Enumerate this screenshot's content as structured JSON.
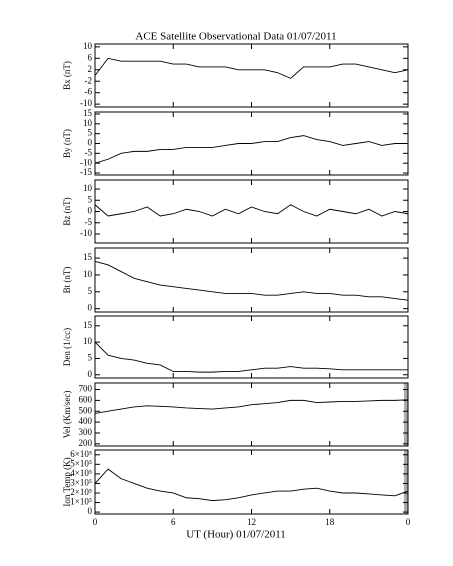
{
  "chart_data": [
    {
      "type": "line",
      "title": "ACE Satellite Observational Data   01/07/2011",
      "y_label": "Bx (nT)",
      "x": [
        0,
        1,
        2,
        3,
        4,
        5,
        6,
        7,
        8,
        9,
        10,
        11,
        12,
        13,
        14,
        15,
        16,
        17,
        18,
        19,
        20,
        21,
        22,
        23,
        24
      ],
      "values": [
        0,
        6,
        5,
        5,
        5,
        5,
        4,
        4,
        3,
        3,
        3,
        2,
        2,
        2,
        1,
        -1,
        3,
        3,
        3,
        4,
        4,
        3,
        2,
        1,
        2
      ],
      "xlim": [
        0,
        24
      ],
      "ylim": [
        -11,
        11
      ],
      "yticks": [
        -10,
        -6,
        -2,
        2,
        6,
        10
      ]
    },
    {
      "type": "line",
      "y_label": "By (nT)",
      "x": [
        0,
        1,
        2,
        3,
        4,
        5,
        6,
        7,
        8,
        9,
        10,
        11,
        12,
        13,
        14,
        15,
        16,
        17,
        18,
        19,
        20,
        21,
        22,
        23,
        24
      ],
      "values": [
        -10,
        -8,
        -5,
        -4,
        -4,
        -3,
        -3,
        -2,
        -2,
        -2,
        -1,
        0,
        0,
        1,
        1,
        3,
        4,
        2,
        1,
        -1,
        0,
        1,
        -1,
        0,
        0
      ],
      "xlim": [
        0,
        24
      ],
      "ylim": [
        -16,
        16
      ],
      "yticks": [
        -15,
        -10,
        -5,
        0,
        5,
        10,
        15
      ]
    },
    {
      "type": "line",
      "y_label": "Bz (nT)",
      "x": [
        0,
        1,
        2,
        3,
        4,
        5,
        6,
        7,
        8,
        9,
        10,
        11,
        12,
        13,
        14,
        15,
        16,
        17,
        18,
        19,
        20,
        21,
        22,
        23,
        24
      ],
      "values": [
        3,
        -2,
        -1,
        0,
        2,
        -2,
        -1,
        1,
        0,
        -2,
        1,
        -1,
        2,
        0,
        -1,
        3,
        0,
        -2,
        1,
        0,
        -1,
        1,
        -2,
        0,
        -1
      ],
      "xlim": [
        0,
        24
      ],
      "ylim": [
        -14,
        14
      ],
      "yticks": [
        -10,
        -5,
        0,
        5,
        10
      ]
    },
    {
      "type": "line",
      "y_label": "Bt (nT)",
      "x": [
        0,
        1,
        2,
        3,
        4,
        5,
        6,
        7,
        8,
        9,
        10,
        11,
        12,
        13,
        14,
        15,
        16,
        17,
        18,
        19,
        20,
        21,
        22,
        23,
        24
      ],
      "values": [
        14,
        13,
        11,
        9,
        8,
        7,
        6.5,
        6,
        5.5,
        5,
        4.5,
        4.5,
        4.5,
        4,
        4,
        4.5,
        5,
        4.5,
        4.5,
        4,
        4,
        3.5,
        3.5,
        3,
        2.5
      ],
      "xlim": [
        0,
        24
      ],
      "ylim": [
        -1,
        18
      ],
      "yticks": [
        0,
        5,
        10,
        15
      ]
    },
    {
      "type": "line",
      "y_label": "Den (1/cc)",
      "x": [
        0,
        1,
        2,
        3,
        4,
        5,
        6,
        7,
        8,
        9,
        10,
        11,
        12,
        13,
        14,
        15,
        16,
        17,
        18,
        19,
        20,
        21,
        22,
        23,
        24
      ],
      "values": [
        10,
        6,
        5,
        4.5,
        3.5,
        3,
        1,
        1,
        0.8,
        0.8,
        1,
        1,
        1.5,
        2,
        2,
        2.5,
        2,
        2,
        1.8,
        1.5,
        1.5,
        1.5,
        1.5,
        1.5,
        1.5
      ],
      "xlim": [
        0,
        24
      ],
      "ylim": [
        -1,
        18
      ],
      "yticks": [
        0,
        5,
        10,
        15
      ]
    },
    {
      "type": "line",
      "y_label": "Vel (Km/sec)",
      "x": [
        0,
        1,
        2,
        3,
        4,
        5,
        6,
        7,
        8,
        9,
        10,
        11,
        12,
        13,
        14,
        15,
        16,
        17,
        18,
        19,
        20,
        21,
        22,
        23,
        24
      ],
      "values": [
        480,
        500,
        520,
        540,
        550,
        545,
        540,
        530,
        525,
        520,
        530,
        540,
        560,
        570,
        580,
        600,
        600,
        580,
        585,
        590,
        590,
        595,
        600,
        600,
        605
      ],
      "xlim": [
        0,
        24
      ],
      "ylim": [
        180,
        760
      ],
      "yticks": [
        200,
        300,
        400,
        500,
        600,
        700
      ]
    },
    {
      "type": "line",
      "y_label": "Ion Temp (K)",
      "x_label": "UT (Hour)  01/07/2011",
      "x": [
        0,
        1,
        2,
        3,
        4,
        5,
        6,
        7,
        8,
        9,
        10,
        11,
        12,
        13,
        14,
        15,
        16,
        17,
        18,
        19,
        20,
        21,
        22,
        23,
        24
      ],
      "values": [
        300000,
        450000,
        350000,
        300000,
        250000,
        220000,
        200000,
        150000,
        140000,
        120000,
        130000,
        150000,
        180000,
        200000,
        220000,
        220000,
        240000,
        250000,
        220000,
        200000,
        200000,
        190000,
        180000,
        170000,
        220000
      ],
      "xlim": [
        0,
        24
      ],
      "ylim": [
        -20000,
        650000
      ],
      "yticks": [
        0,
        {
          "value": 100000,
          "label": "1×10⁵"
        },
        {
          "value": 200000,
          "label": "2×10⁵"
        },
        {
          "value": 300000,
          "label": "3×10⁵"
        },
        {
          "value": 400000,
          "label": "4×10⁵"
        },
        {
          "value": 500000,
          "label": "5×10⁵"
        },
        {
          "value": 600000,
          "label": "6×10⁵"
        }
      ],
      "xticks": [
        0,
        6,
        12,
        18,
        {
          "value": 24,
          "label": "0"
        }
      ]
    }
  ]
}
